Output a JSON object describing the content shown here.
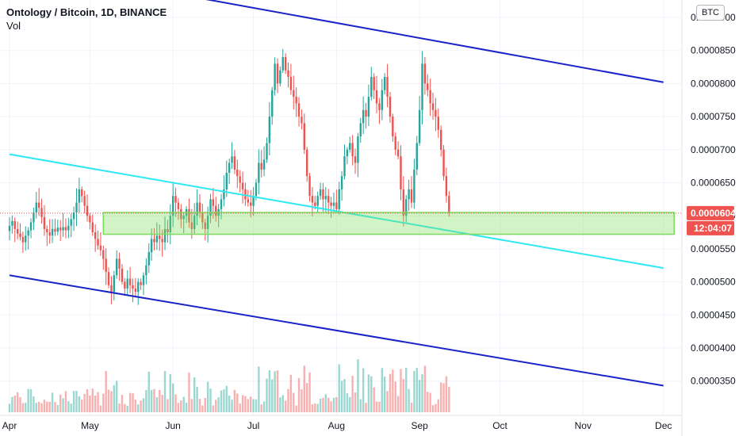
{
  "header": {
    "title": "Ontology / Bitcoin, 1D, BINANCE",
    "vol_label": "Vol",
    "currency_badge": "BTC"
  },
  "colors": {
    "up": "#26a69a",
    "down": "#ef5350",
    "channel": "#1a23c8",
    "midline": "#2ee8f2",
    "zone": "#7ddc5c",
    "price_tag": "#ef5350"
  },
  "price_tag": {
    "price": "0.0000604",
    "countdown": "12:04:07"
  },
  "chart_data": {
    "type": "candlestick",
    "title": "Ontology / Bitcoin, 1D, BINANCE",
    "y_axis": {
      "range": [
        3e-05,
        9e-05
      ],
      "ticks": [
        "0.0000350",
        "0.0000400",
        "0.0000450",
        "0.0000500",
        "0.0000550",
        "0.0000600",
        "0.0000650",
        "0.0000700",
        "0.0000750",
        "0.0000800",
        "0.0000850",
        "0.0000900"
      ],
      "tick_values": [
        3.5e-05,
        4e-05,
        4.5e-05,
        5e-05,
        5.5e-05,
        6e-05,
        6.5e-05,
        7e-05,
        7.5e-05,
        8e-05,
        8.5e-05,
        9e-05
      ]
    },
    "x_axis": {
      "labels": [
        "Apr",
        "May",
        "Jun",
        "Jul",
        "Aug",
        "Sep",
        "Oct",
        "Nov",
        "Dec"
      ],
      "label_day_index": [
        0,
        30,
        61,
        91,
        122,
        153,
        183,
        214,
        244
      ],
      "first_day": "Apr 1",
      "last_day_shown": "Dec 1"
    },
    "closes": [
      5.85e-05,
      5.92e-05,
      5.8e-05,
      5.73e-05,
      5.68e-05,
      5.6e-05,
      5.7e-05,
      5.78e-05,
      5.9e-05,
      6.05e-05,
      6.2e-05,
      6.12e-05,
      5.98e-05,
      5.8e-05,
      5.75e-05,
      5.7e-05,
      5.8e-05,
      5.76e-05,
      5.82e-05,
      5.78e-05,
      5.83e-05,
      5.78e-05,
      5.85e-05,
      5.95e-05,
      6.05e-05,
      6.2e-05,
      6.4e-05,
      6.3e-05,
      6.15e-05,
      6e-05,
      5.9e-05,
      5.75e-05,
      5.65e-05,
      5.55e-05,
      5.48e-05,
      5.35e-05,
      5.15e-05,
      4.95e-05,
      4.85e-05,
      5.1e-05,
      5.35e-05,
      5.2e-05,
      5e-05,
      4.9e-05,
      5.05e-05,
      4.95e-05,
      4.9e-05,
      4.85e-05,
      5e-05,
      4.95e-05,
      5.1e-05,
      5.25e-05,
      5.45e-05,
      5.65e-05,
      5.6e-05,
      5.7e-05,
      5.65e-05,
      5.6e-05,
      5.8e-05,
      5.75e-05,
      6e-05,
      6.3e-05,
      6.2e-05,
      6.1e-05,
      5.95e-05,
      6e-05,
      6.1e-05,
      5.9e-05,
      5.8e-05,
      6e-05,
      6.2e-05,
      6.05e-05,
      5.9e-05,
      5.8e-05,
      6e-05,
      6.25e-05,
      6.15e-05,
      6e-05,
      6.1e-05,
      6.25e-05,
      6.4e-05,
      6.65e-05,
      6.8e-05,
      6.9e-05,
      6.7e-05,
      6.6e-05,
      6.5e-05,
      6.4e-05,
      6.25e-05,
      6.2e-05,
      6.15e-05,
      6.3e-05,
      6.5e-05,
      6.8e-05,
      6.7e-05,
      6.85e-05,
      7.1e-05,
      7.5e-05,
      7.9e-05,
      8.3e-05,
      8e-05,
      8.2e-05,
      8.4e-05,
      8.2e-05,
      8.1e-05,
      7.9e-05,
      7.8e-05,
      7.7e-05,
      7.5e-05,
      7.4e-05,
      7e-05,
      6.6e-05,
      6.3e-05,
      6.2e-05,
      6.15e-05,
      6.3e-05,
      6.4e-05,
      6.25e-05,
      6.3e-05,
      6.2e-05,
      6.15e-05,
      6.2e-05,
      6.1e-05,
      6.4e-05,
      6.6e-05,
      6.9e-05,
      7e-05,
      7.1e-05,
      6.9e-05,
      6.8e-05,
      7.2e-05,
      7.4e-05,
      7.6e-05,
      7.5e-05,
      7.8e-05,
      8.1e-05,
      7.9e-05,
      7.7e-05,
      7.6e-05,
      7.9e-05,
      8.1e-05,
      7.8e-05,
      7.5e-05,
      7.2e-05,
      7e-05,
      6.9e-05,
      6.4e-05,
      6e-05,
      6.25e-05,
      6.4e-05,
      6.2e-05,
      6.7e-05,
      7.1e-05,
      7.6e-05,
      8.3e-05,
      8e-05,
      7.9e-05,
      7.7e-05,
      7.6e-05,
      7.5e-05,
      7.3e-05,
      7e-05,
      6.6e-05,
      6.3e-05,
      6.04e-05
    ],
    "volume_note": "volume histogram at bottom, no scale printed",
    "annotations": [
      {
        "name": "upper-channel-line",
        "from": {
          "day": 25,
          "price": 9.63e-05
        },
        "to": {
          "day": 244,
          "price": 8.02e-05
        }
      },
      {
        "name": "lower-channel-line",
        "from": {
          "day": 0,
          "price": 5.1e-05
        },
        "to": {
          "day": 244,
          "price": 3.43e-05
        }
      },
      {
        "name": "midline",
        "from": {
          "day": 0,
          "price": 6.93e-05
        },
        "to": {
          "day": 244,
          "price": 5.21e-05
        }
      },
      {
        "name": "support-zone",
        "from": {
          "day": 35
        },
        "to": {
          "day": 248
        },
        "price_top": 6.05e-05,
        "price_bottom": 5.72e-05
      }
    ]
  }
}
